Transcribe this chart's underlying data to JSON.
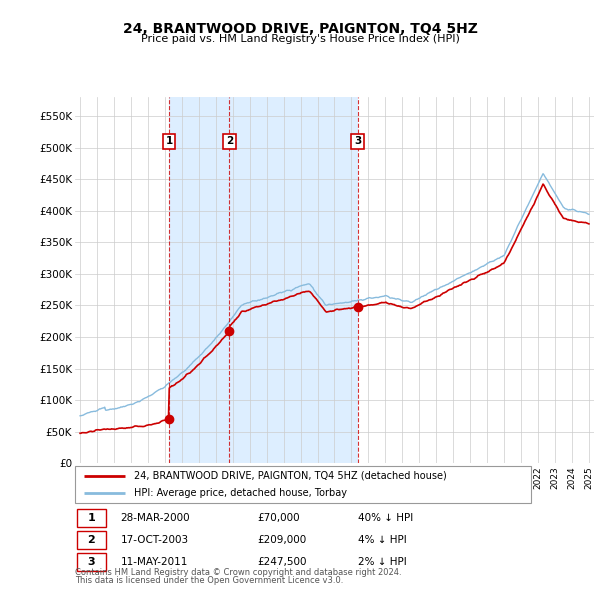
{
  "title": "24, BRANTWOOD DRIVE, PAIGNTON, TQ4 5HZ",
  "subtitle": "Price paid vs. HM Land Registry's House Price Index (HPI)",
  "legend_line1": "24, BRANTWOOD DRIVE, PAIGNTON, TQ4 5HZ (detached house)",
  "legend_line2": "HPI: Average price, detached house, Torbay",
  "house_color": "#cc0000",
  "hpi_color": "#88bbdd",
  "shade_color": "#ddeeff",
  "table_entries": [
    {
      "num": "1",
      "date": "28-MAR-2000",
      "price": "£70,000",
      "pct": "40% ↓ HPI"
    },
    {
      "num": "2",
      "date": "17-OCT-2003",
      "price": "£209,000",
      "pct": "4% ↓ HPI"
    },
    {
      "num": "3",
      "date": "11-MAY-2011",
      "price": "£247,500",
      "pct": "2% ↓ HPI"
    }
  ],
  "footnote1": "Contains HM Land Registry data © Crown copyright and database right 2024.",
  "footnote2": "This data is licensed under the Open Government Licence v3.0.",
  "ylabel_ticks": [
    "£0",
    "£50K",
    "£100K",
    "£150K",
    "£200K",
    "£250K",
    "£300K",
    "£350K",
    "£400K",
    "£450K",
    "£500K",
    "£550K"
  ],
  "ytick_values": [
    0,
    50000,
    100000,
    150000,
    200000,
    250000,
    300000,
    350000,
    400000,
    450000,
    500000,
    550000
  ],
  "ylim": [
    0,
    580000
  ],
  "sale_dates": [
    2000.24,
    2003.8,
    2011.36
  ],
  "sale_prices": [
    70000,
    209000,
    247500
  ],
  "sale_labels": [
    "1",
    "2",
    "3"
  ],
  "vline_dates": [
    2000.24,
    2003.8,
    2011.36
  ],
  "xlim_left": 1994.7,
  "xlim_right": 2025.3
}
